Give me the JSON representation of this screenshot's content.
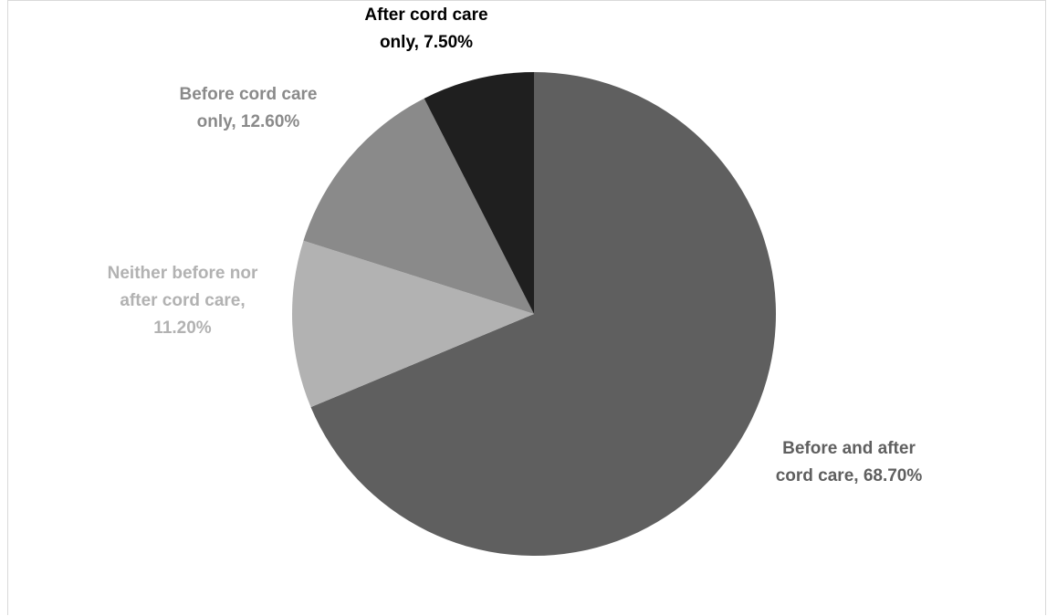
{
  "chart_data": {
    "type": "pie",
    "title": "",
    "start_angle_deg": 0,
    "direction": "clockwise",
    "slices": [
      {
        "name": "Before and after cord care",
        "value": 68.7,
        "label_lines": [
          "Before and after",
          "cord care, 68.70%"
        ],
        "color": "#5f5f5f",
        "label_color": "#5f5f5f"
      },
      {
        "name": "Neither before nor after cord care",
        "value": 11.2,
        "label_lines": [
          "Neither before nor",
          "after cord care,",
          "11.20%"
        ],
        "color": "#b2b2b2",
        "label_color": "#b2b2b2"
      },
      {
        "name": "Before cord care only",
        "value": 12.6,
        "label_lines": [
          "Before cord care",
          "only, 12.60%"
        ],
        "color": "#8a8a8a",
        "label_color": "#8a8a8a"
      },
      {
        "name": "After cord care only",
        "value": 7.5,
        "label_lines": [
          "After cord care",
          "only, 7.50%"
        ],
        "color": "#1f1f1f",
        "label_color": "#000000"
      }
    ],
    "legend": "none"
  }
}
